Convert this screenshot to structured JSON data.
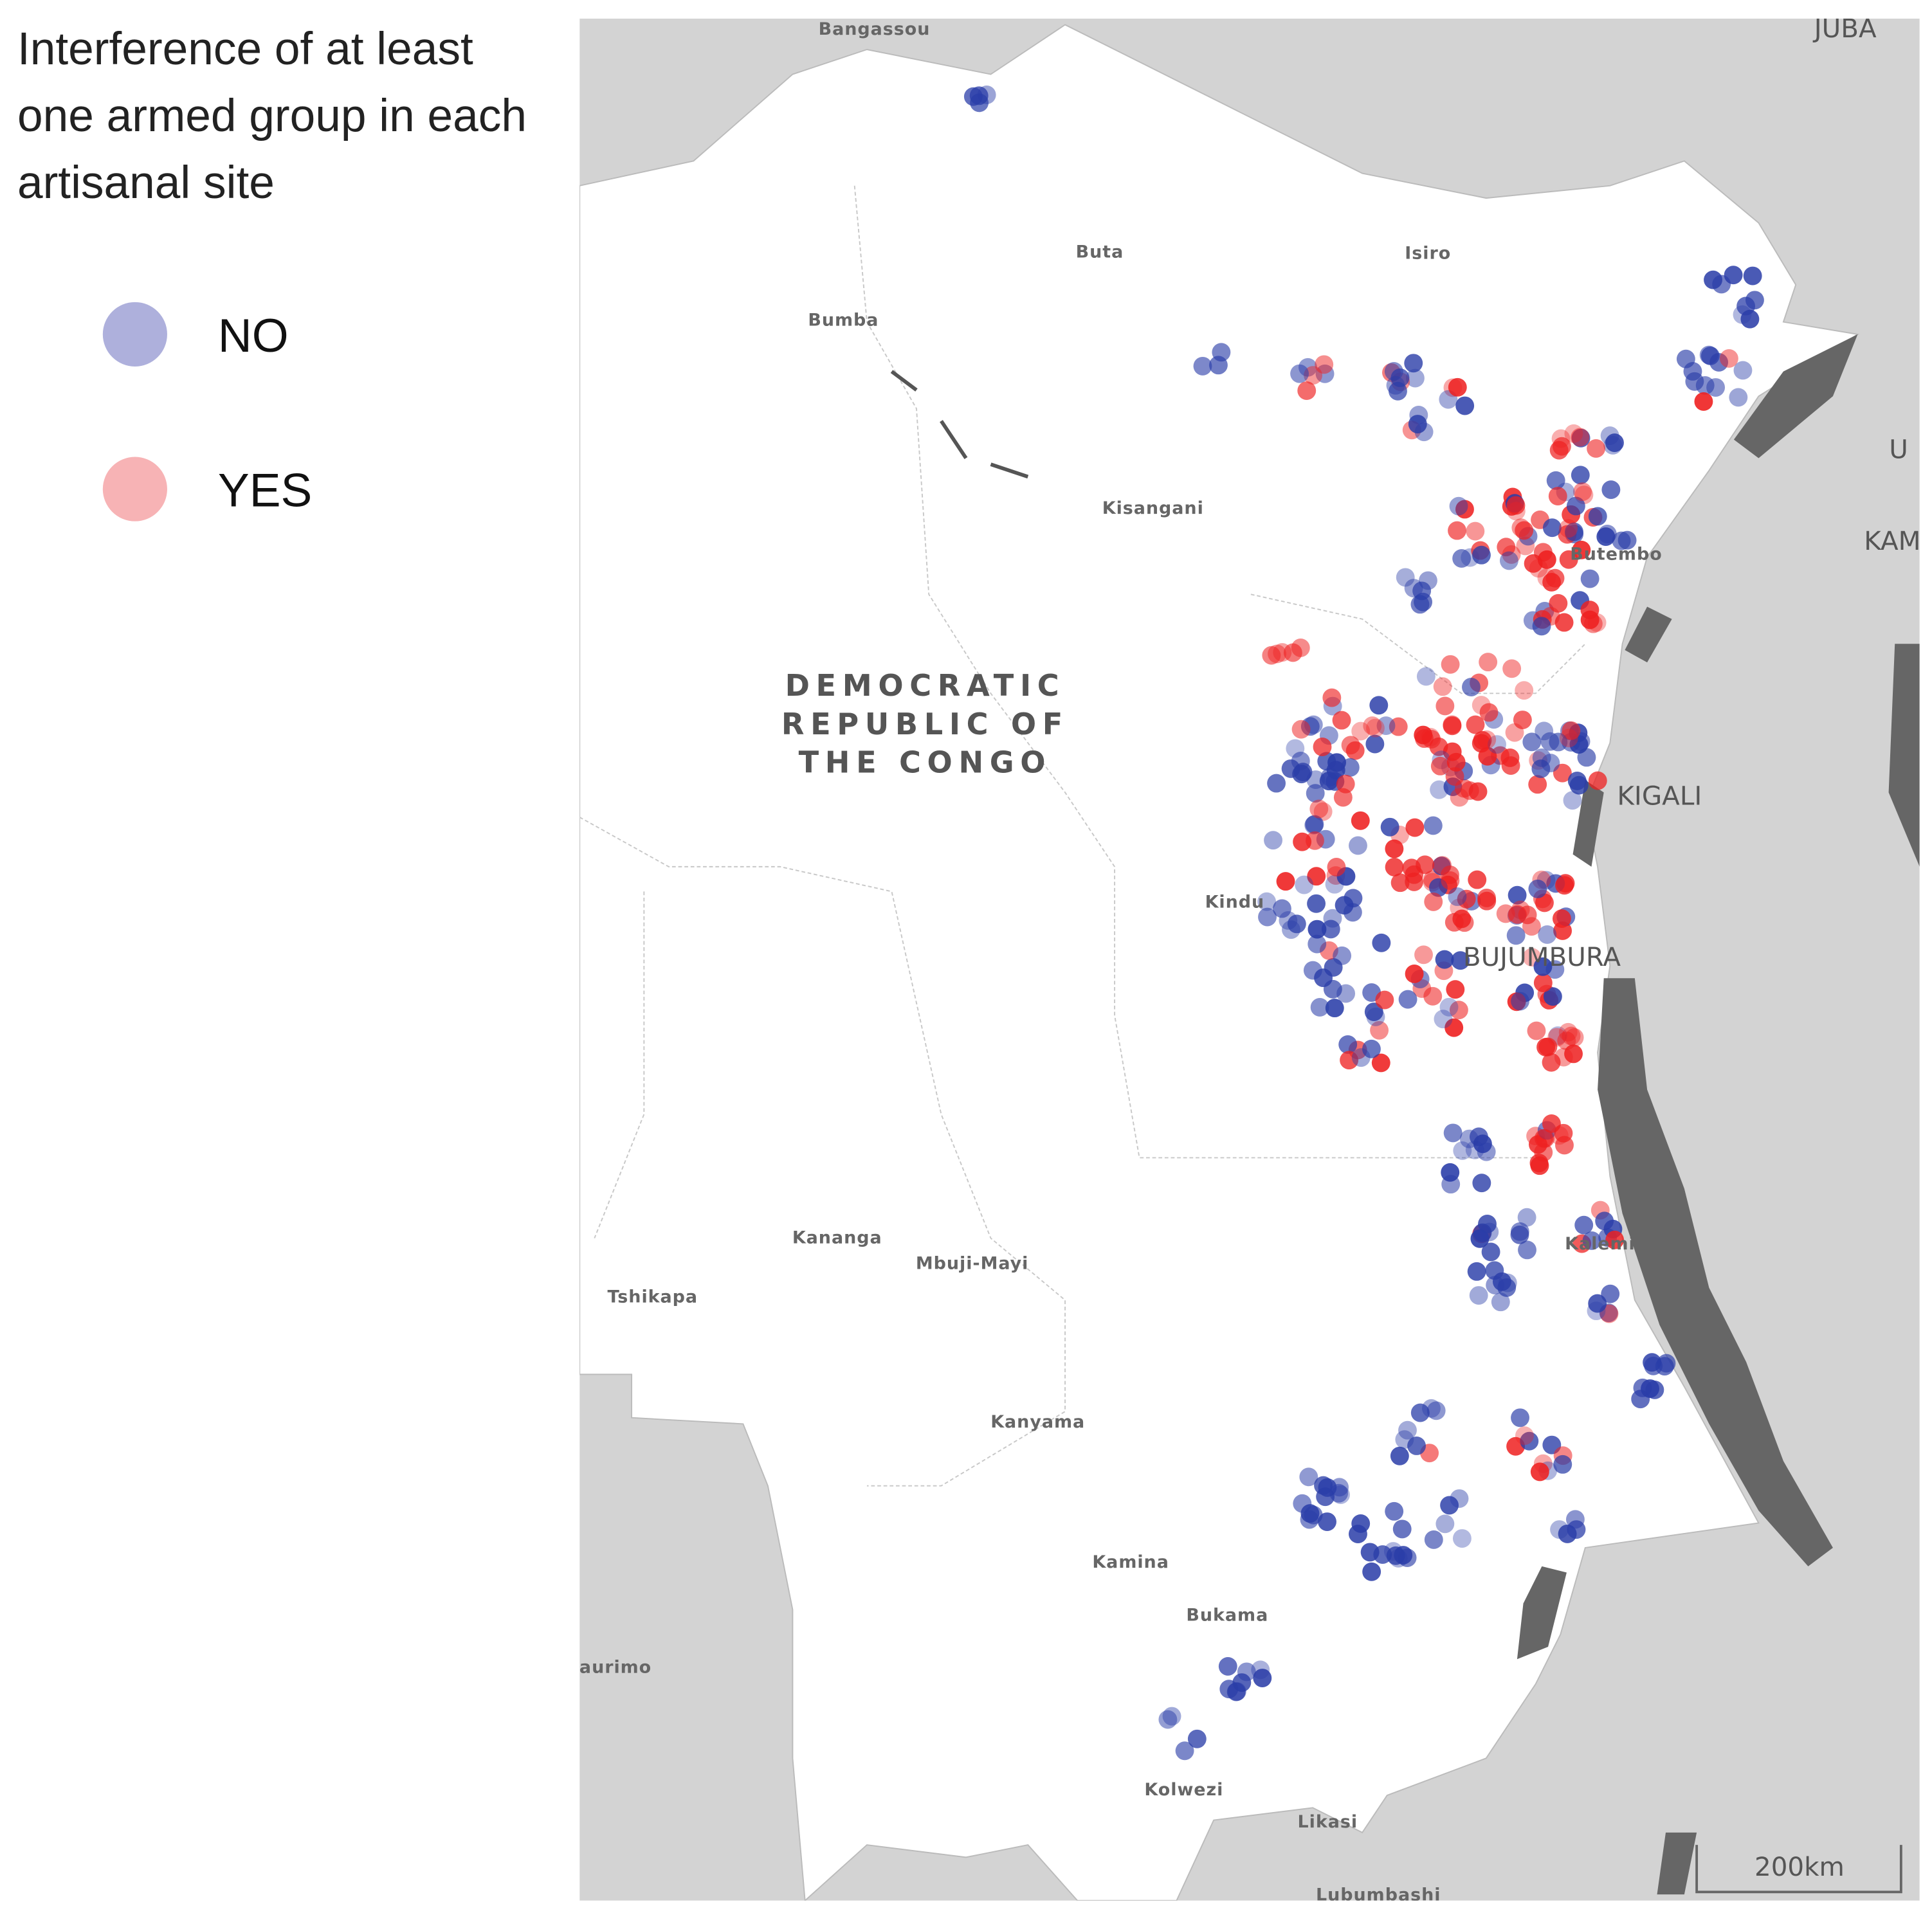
{
  "title": [
    "Interference of at least",
    "one armed group in each",
    "artisanal site"
  ],
  "legend": [
    {
      "label": "NO",
      "color": "#2a3da8",
      "swatch": "#aeb0dc"
    },
    {
      "label": "YES",
      "color": "#ee2020",
      "swatch": "#f7b3b5"
    }
  ],
  "country": [
    "DEMOCRATIC",
    "REPUBLIC OF",
    "THE CONGO"
  ],
  "places": [
    "Bangassou",
    "Buta",
    "Isiro",
    "Bumba",
    "Kisangani",
    "Butembo",
    "Kindu",
    "Kananga",
    "Mbuji-Mayi",
    "Tshikapa",
    "Kalemie",
    "Kanyama",
    "Kamina",
    "Bukama",
    "aurimo",
    "Kolwezi",
    "Likasi",
    "Lubumbashi"
  ],
  "capitals": [
    "JUBA",
    "KIGALI",
    "BUJUMBURA",
    "U",
    "KAM"
  ],
  "scale_bar": "200km"
}
